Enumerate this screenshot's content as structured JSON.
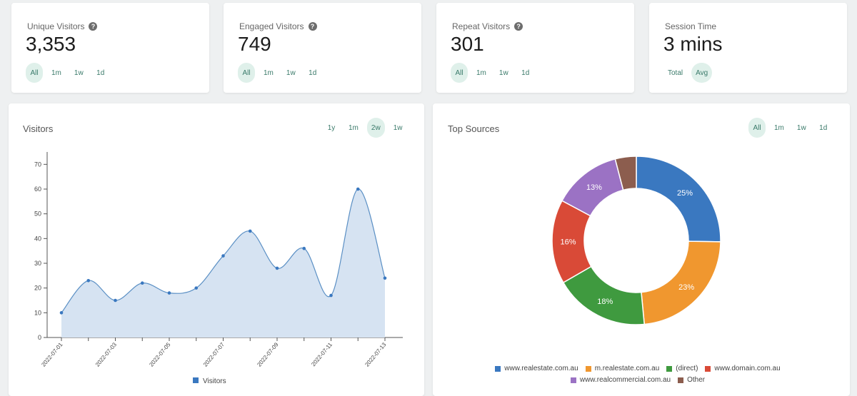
{
  "stats": [
    {
      "title": "Unique Visitors",
      "value": "3,353",
      "filters": [
        "All",
        "1m",
        "1w",
        "1d"
      ],
      "active": "All",
      "help": true
    },
    {
      "title": "Engaged Visitors",
      "value": "749",
      "filters": [
        "All",
        "1m",
        "1w",
        "1d"
      ],
      "active": "All",
      "help": true
    },
    {
      "title": "Repeat Visitors",
      "value": "301",
      "filters": [
        "All",
        "1m",
        "1w",
        "1d"
      ],
      "active": "All",
      "help": true
    },
    {
      "title": "Session Time",
      "value": "3 mins",
      "filters": [
        "Total",
        "Avg"
      ],
      "active": "Avg",
      "help": false
    }
  ],
  "visitors_panel": {
    "title": "Visitors",
    "filters": [
      "1y",
      "1m",
      "2w",
      "1w"
    ],
    "active": "2w"
  },
  "sources_panel": {
    "title": "Top Sources",
    "filters": [
      "All",
      "1m",
      "1w",
      "1d"
    ],
    "active": "All"
  },
  "colors": {
    "accent": "#3a7a6a",
    "active_bg": "#dff0ea",
    "line": "#5a8fc4",
    "area": "#d6e3f2"
  },
  "icons": {
    "help": "question-circle-icon"
  },
  "chart_data": [
    {
      "type": "area",
      "title": "",
      "xlabel": "",
      "ylabel": "",
      "ylim": [
        0,
        75
      ],
      "yticks": [
        0,
        10,
        20,
        30,
        40,
        50,
        60,
        70
      ],
      "x": [
        "2022-07-01",
        "2022-07-02",
        "2022-07-03",
        "2022-07-04",
        "2022-07-05",
        "2022-07-06",
        "2022-07-07",
        "2022-07-08",
        "2022-07-09",
        "2022-07-10",
        "2022-07-11",
        "2022-07-12",
        "2022-07-13"
      ],
      "xtick_labels": [
        "2022-07-01",
        "2022-07-03",
        "2022-07-05",
        "2022-07-07",
        "2022-07-09",
        "2022-07-11",
        "2022-07-13"
      ],
      "series": [
        {
          "name": "Visitors",
          "values": [
            10,
            23,
            15,
            22,
            18,
            20,
            33,
            43,
            28,
            36,
            17,
            60,
            24
          ]
        }
      ],
      "legend": "bottom",
      "color": "#3a78c0"
    },
    {
      "type": "pie",
      "title": "",
      "labels": [
        "www.realestate.com.au",
        "m.realestate.com.au",
        "(direct)",
        "www.domain.com.au",
        "www.realcommercial.com.au",
        "Other"
      ],
      "values": [
        25,
        23,
        18,
        16,
        13,
        4
      ],
      "display_labels": [
        "25%",
        "23%",
        "18%",
        "16%",
        "13%",
        ""
      ],
      "colors": [
        "#3a78c0",
        "#f0972f",
        "#3f9a3f",
        "#d94a37",
        "#9b72c4",
        "#8c5d4e"
      ],
      "legend": "bottom"
    }
  ]
}
